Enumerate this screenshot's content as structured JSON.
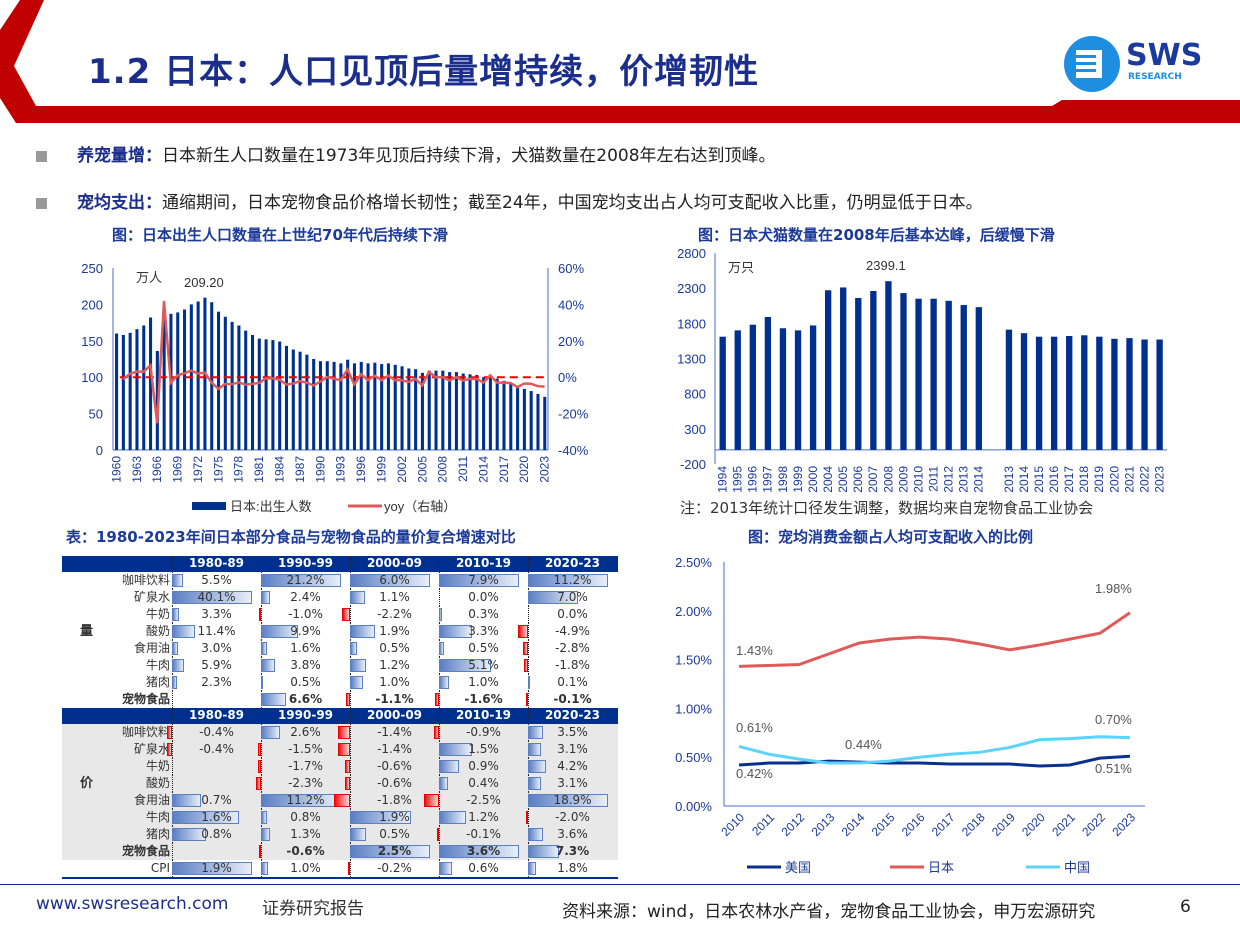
{
  "header": {
    "title": "1.2 日本：人口见顶后量增持续，价增韧性",
    "logo_text": "SWS",
    "logo_sub": "RESEARCH"
  },
  "bullets": [
    {
      "label": "养宠量增：",
      "text": "日本新生人口数量在1973年见顶后持续下滑，犬猫数量在2008年左右达到顶峰。"
    },
    {
      "label": "宠均支出：",
      "text": "通缩期间，日本宠物食品价格增长韧性；截至24年，中国宠均支出占人均可支配收入比重，仍明显低于日本。"
    }
  ],
  "colors": {
    "brand_blue": "#1b2e8c",
    "bar_blue": "#00308f",
    "red": "#c00000",
    "japan": "#e05a5a",
    "china": "#5bd3fa",
    "us": "#0a2f8f"
  },
  "chart_data": [
    {
      "type": "bar+line",
      "title": "图：日本出生人口数量在上世纪70年代后持续下滑",
      "unit": "万人",
      "annotation": "209.20",
      "years_start": 1960,
      "years_end": 2023,
      "x_ticks": [
        "1960",
        "1963",
        "1966",
        "1969",
        "1972",
        "1975",
        "1978",
        "1981",
        "1984",
        "1987",
        "1990",
        "1993",
        "1996",
        "1999",
        "2002",
        "2005",
        "2008",
        "2011",
        "2014",
        "2017",
        "2020",
        "2023"
      ],
      "y_left": [
        0,
        50,
        100,
        150,
        200,
        250
      ],
      "y_right": [
        "-40%",
        "-20%",
        "0%",
        "20%",
        "40%",
        "60%"
      ],
      "ylim_left": [
        0,
        250
      ],
      "ylim_right": [
        -40,
        60
      ],
      "series": [
        {
          "name": "日本:出生人数",
          "values": [
            160,
            158,
            161,
            166,
            171,
            182,
            136,
            193,
            187,
            189,
            193,
            200,
            204,
            209.2,
            203,
            190,
            183,
            176,
            171,
            164,
            158,
            153,
            152,
            151,
            149,
            143,
            138,
            135,
            131,
            125,
            122,
            122,
            121,
            119,
            124,
            119,
            121,
            119,
            120,
            118,
            119,
            117,
            115,
            112,
            111,
            106,
            109,
            109,
            109,
            107,
            107,
            105,
            104,
            103,
            100,
            101,
            98,
            95,
            92,
            87,
            84,
            81,
            77,
            73
          ]
        },
        {
          "name": "yoy（右轴）",
          "derived": "yoy of births"
        }
      ]
    },
    {
      "type": "bar",
      "title": "图：日本犬猫数量在2008年后基本达峰，后缓慢下滑",
      "unit": "万只",
      "annotation": "2399.1",
      "categories": [
        "1994",
        "1995",
        "1996",
        "1997",
        "1998",
        "1999",
        "2000",
        "2004",
        "2005",
        "2006",
        "2007",
        "2008",
        "2009",
        "2010",
        "2011",
        "2012",
        "2013",
        "2014",
        "",
        "2013",
        "2014",
        "2015",
        "2016",
        "2017",
        "2018",
        "2019",
        "2020",
        "2021",
        "2022",
        "2023"
      ],
      "values": [
        1610,
        1700,
        1780,
        1890,
        1730,
        1700,
        1770,
        2270,
        2310,
        2160,
        2260,
        2399.1,
        2230,
        2150,
        2150,
        2120,
        2060,
        2030,
        null,
        1710,
        1660,
        1610,
        1610,
        1620,
        1630,
        1610,
        1580,
        1590,
        1570,
        1570
      ],
      "y_ticks": [
        -200,
        300,
        800,
        1300,
        1800,
        2300,
        2800
      ],
      "ylim": [
        -200,
        2800
      ],
      "note": "注：2013年统计口径发生调整，数据均来自宠物食品工业协会"
    },
    {
      "type": "line",
      "title": "图：宠均消费金额占人均可支配收入的比例",
      "categories": [
        "2010",
        "2011",
        "2012",
        "2013",
        "2014",
        "2015",
        "2016",
        "2017",
        "2018",
        "2019",
        "2020",
        "2021",
        "2022",
        "2023"
      ],
      "y_ticks": [
        "0.00%",
        "0.50%",
        "1.00%",
        "1.50%",
        "2.00%",
        "2.50%"
      ],
      "ylim": [
        0,
        2.5
      ],
      "series": [
        {
          "name": "美国",
          "values": [
            0.42,
            0.44,
            0.44,
            0.46,
            0.45,
            0.44,
            0.44,
            0.43,
            0.43,
            0.43,
            0.41,
            0.42,
            0.49,
            0.51
          ]
        },
        {
          "name": "日本",
          "values": [
            1.43,
            1.44,
            1.45,
            1.56,
            1.67,
            1.71,
            1.73,
            1.71,
            1.66,
            1.6,
            1.65,
            1.71,
            1.77,
            1.98
          ]
        },
        {
          "name": "中国",
          "values": [
            0.61,
            0.53,
            0.48,
            0.44,
            0.44,
            0.46,
            0.5,
            0.53,
            0.55,
            0.6,
            0.68,
            0.69,
            0.71,
            0.7
          ]
        }
      ],
      "labels": [
        "1.43%",
        "1.98%",
        "0.61%",
        "0.44%",
        "0.70%",
        "0.42%",
        "0.51%"
      ]
    }
  ],
  "table": {
    "title": "表：1980-2023年间日本部分食品与宠物食品的量价复合增速对比",
    "columns": [
      "1980-89",
      "1990-99",
      "2000-09",
      "2010-19",
      "2020-23"
    ],
    "volume": {
      "group": "量",
      "rows": [
        {
          "item": "咖啡饮料",
          "values": [
            "5.5%",
            "21.2%",
            "6.0%",
            "7.9%",
            "11.2%"
          ]
        },
        {
          "item": "矿泉水",
          "values": [
            "40.1%",
            "2.4%",
            "1.1%",
            "0.0%",
            "7.0%"
          ]
        },
        {
          "item": "牛奶",
          "values": [
            "3.3%",
            "-1.0%",
            "-2.2%",
            "0.3%",
            "0.0%"
          ]
        },
        {
          "item": "酸奶",
          "values": [
            "11.4%",
            "9.9%",
            "1.9%",
            "3.3%",
            "-4.9%"
          ]
        },
        {
          "item": "食用油",
          "values": [
            "3.0%",
            "1.6%",
            "0.5%",
            "0.5%",
            "-2.8%"
          ]
        },
        {
          "item": "牛肉",
          "values": [
            "5.9%",
            "3.8%",
            "1.2%",
            "5.1%",
            "-1.8%"
          ]
        },
        {
          "item": "猪肉",
          "values": [
            "2.3%",
            "0.5%",
            "1.0%",
            "1.0%",
            "0.1%"
          ]
        },
        {
          "item": "宠物食品",
          "values": [
            "",
            "6.6%",
            "-1.1%",
            "-1.6%",
            "-0.1%"
          ],
          "bold": true
        }
      ]
    },
    "price": {
      "group": "价",
      "rows": [
        {
          "item": "咖啡饮料",
          "values": [
            "-0.4%",
            "2.6%",
            "-1.4%",
            "-0.9%",
            "3.5%"
          ]
        },
        {
          "item": "矿泉水",
          "values": [
            "-0.4%",
            "-1.5%",
            "-1.4%",
            "1.5%",
            "3.1%"
          ]
        },
        {
          "item": "牛奶",
          "values": [
            "",
            "-1.7%",
            "-0.6%",
            "0.9%",
            "4.2%"
          ]
        },
        {
          "item": "酸奶",
          "values": [
            "",
            "-2.3%",
            "-0.6%",
            "0.4%",
            "3.1%"
          ]
        },
        {
          "item": "食用油",
          "values": [
            "0.7%",
            "11.2%",
            "-1.8%",
            "-2.5%",
            "18.9%"
          ]
        },
        {
          "item": "牛肉",
          "values": [
            "1.6%",
            "0.8%",
            "1.9%",
            "1.2%",
            "-2.0%"
          ]
        },
        {
          "item": "猪肉",
          "values": [
            "0.8%",
            "1.3%",
            "0.5%",
            "-0.1%",
            "3.6%"
          ]
        },
        {
          "item": "宠物食品",
          "values": [
            "",
            "-0.6%",
            "2.5%",
            "3.6%",
            "7.3%"
          ],
          "bold": true
        },
        {
          "item": "CPI",
          "values": [
            "1.9%",
            "1.0%",
            "-0.2%",
            "0.6%",
            "1.8%"
          ],
          "white": true
        }
      ]
    }
  },
  "footer": {
    "url": "www.swsresearch.com",
    "report": "证券研究报告",
    "source": "资料来源：wind，日本农林水产省，宠物食品工业协会，申万宏源研究",
    "page": "6"
  }
}
